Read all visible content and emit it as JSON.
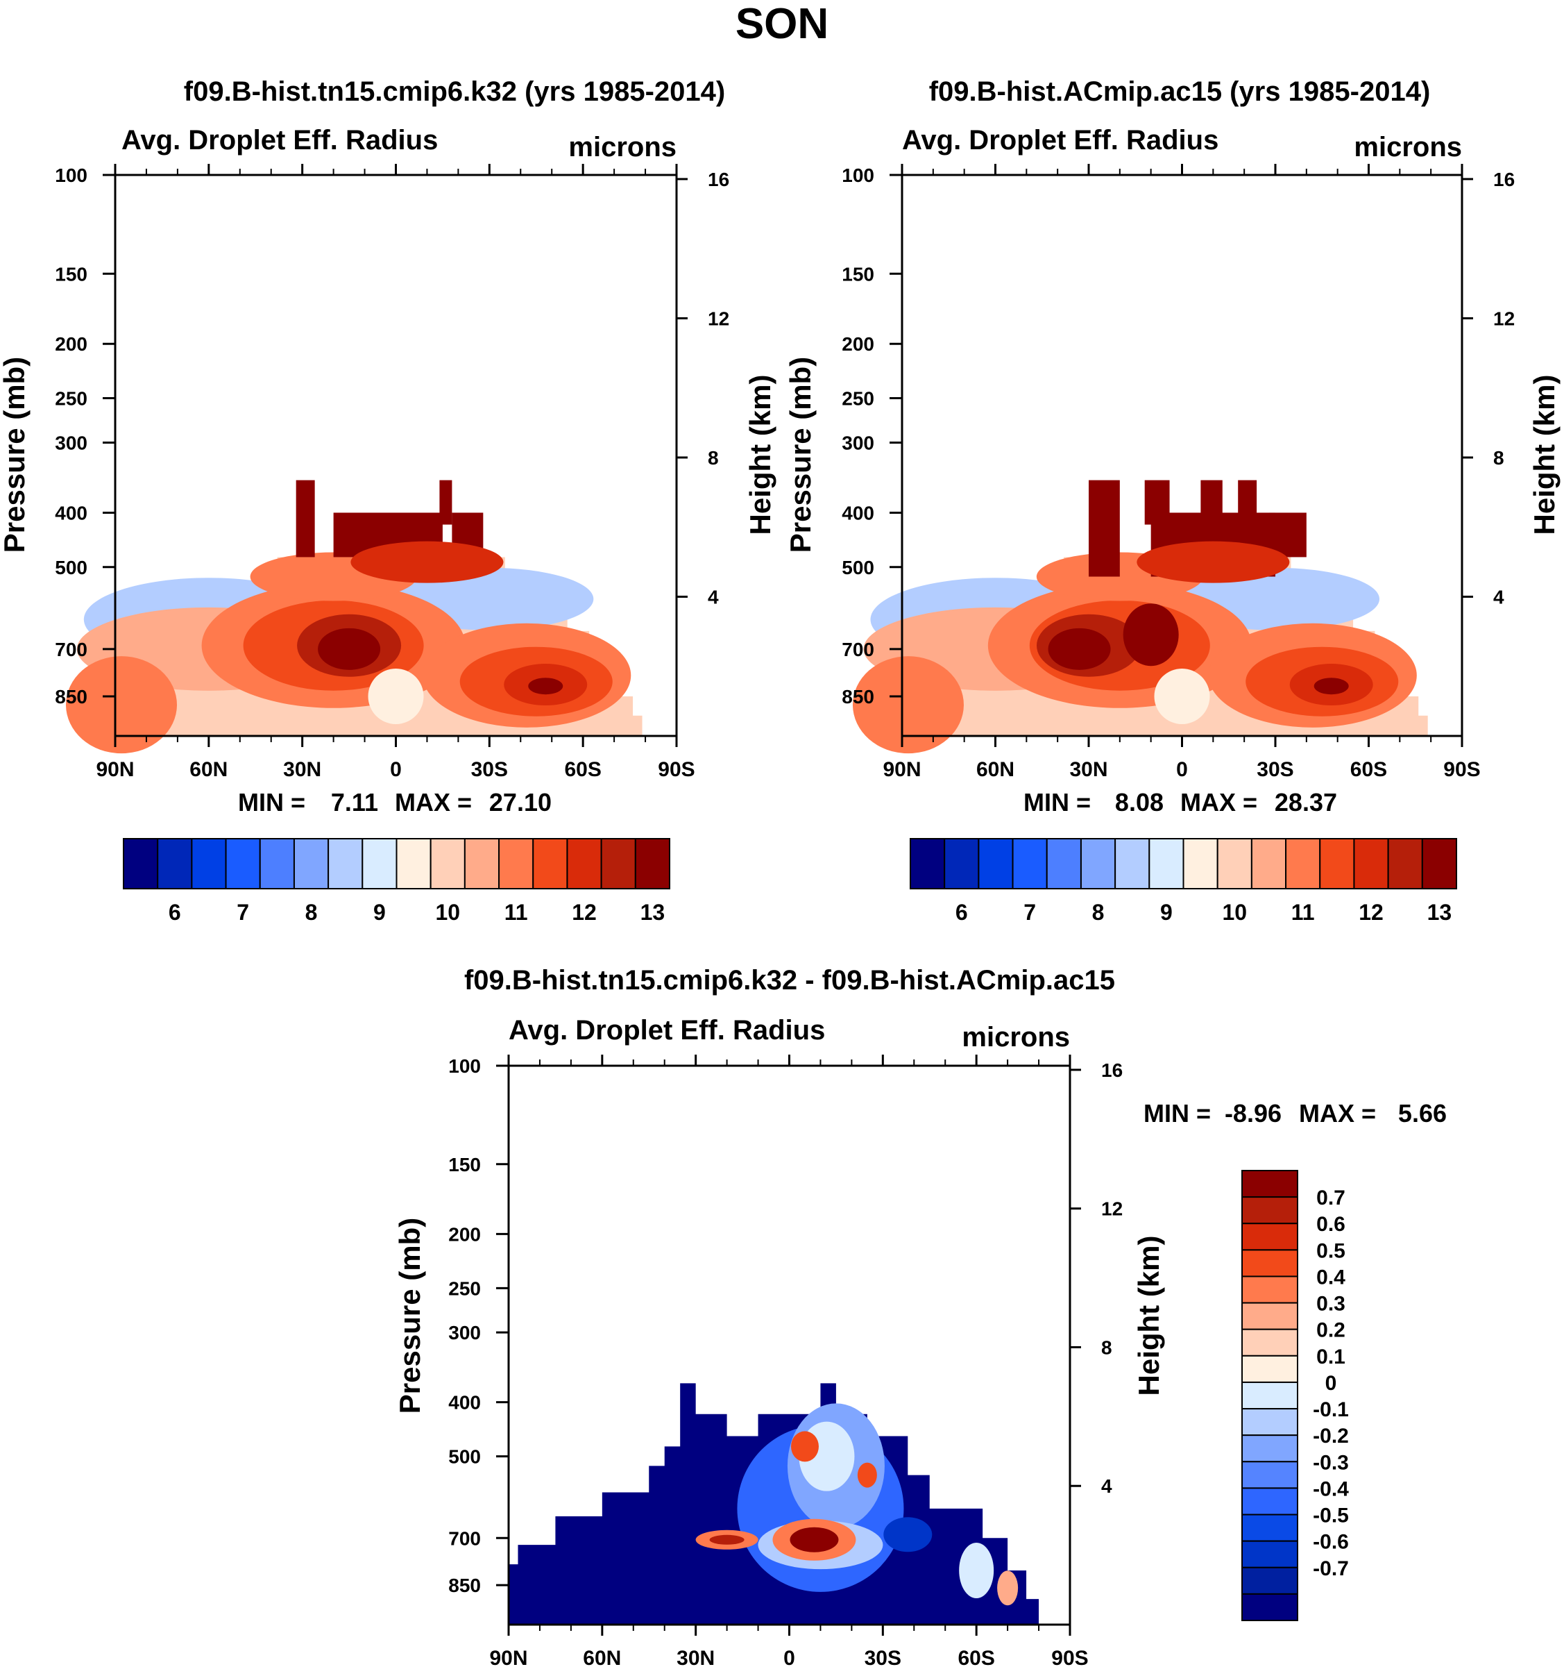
{
  "figure": {
    "season_title": "SON"
  },
  "colors": {
    "abs_scale": [
      "#000080",
      "#0027b8",
      "#0040e5",
      "#1a5cff",
      "#4d7fff",
      "#80a6ff",
      "#b3cdff",
      "#d9ecff",
      "#fff0e0",
      "#ffd0b8",
      "#ffab8a",
      "#ff7a4d",
      "#f24a1a",
      "#d92b0a",
      "#b51f0a",
      "#8b0000"
    ],
    "diff_scale": [
      "#000080",
      "#0020a0",
      "#0035c8",
      "#0a4ae6",
      "#2e66ff",
      "#5584ff",
      "#80a6ff",
      "#b3cdff",
      "#d9ecff",
      "#fff0e0",
      "#ffd0b8",
      "#ffab8a",
      "#ff7a4d",
      "#f24a1a",
      "#d92b0a",
      "#b51f0a",
      "#8b0000"
    ]
  },
  "chart_data": [
    {
      "type": "heatmap",
      "title": "f09.B-hist.tn15.cmip6.k32 (yrs 1985-2014)",
      "subtitle_left": "Avg. Droplet Eff. Radius",
      "subtitle_right": "microns",
      "xlabel": "",
      "ylabel_left": "Pressure (mb)",
      "ylabel_right": "Height (km)",
      "x_ticks": [
        "90N",
        "60N",
        "30N",
        "0",
        "30S",
        "60S",
        "90S"
      ],
      "x_values": [
        90,
        60,
        30,
        0,
        -30,
        -60,
        -90
      ],
      "y_ticks_pressure": [
        100,
        150,
        200,
        250,
        300,
        400,
        500,
        700,
        850
      ],
      "y_ticks_height": [
        16,
        12,
        8,
        4
      ],
      "min_label": "MIN =",
      "min_value": "7.11",
      "max_label": "MAX =",
      "max_value": "27.10",
      "colorbar_labels": [
        "6",
        "7",
        "8",
        "9",
        "10",
        "11",
        "12",
        "13"
      ],
      "colorbar_levels": [
        5.5,
        6,
        6.5,
        7,
        7.5,
        8,
        8.5,
        9,
        9.5,
        10,
        10.5,
        11,
        11.5,
        12,
        12.5,
        13
      ]
    },
    {
      "type": "heatmap",
      "title": "f09.B-hist.ACmip.ac15 (yrs 1985-2014)",
      "subtitle_left": "Avg. Droplet Eff. Radius",
      "subtitle_right": "microns",
      "xlabel": "",
      "ylabel_left": "Pressure (mb)",
      "ylabel_right": "Height (km)",
      "x_ticks": [
        "90N",
        "60N",
        "30N",
        "0",
        "30S",
        "60S",
        "90S"
      ],
      "x_values": [
        90,
        60,
        30,
        0,
        -30,
        -60,
        -90
      ],
      "y_ticks_pressure": [
        100,
        150,
        200,
        250,
        300,
        400,
        500,
        700,
        850
      ],
      "y_ticks_height": [
        16,
        12,
        8,
        4
      ],
      "min_label": "MIN =",
      "min_value": "8.08",
      "max_label": "MAX =",
      "max_value": "28.37",
      "colorbar_labels": [
        "6",
        "7",
        "8",
        "9",
        "10",
        "11",
        "12",
        "13"
      ],
      "colorbar_levels": [
        5.5,
        6,
        6.5,
        7,
        7.5,
        8,
        8.5,
        9,
        9.5,
        10,
        10.5,
        11,
        11.5,
        12,
        12.5,
        13
      ]
    },
    {
      "type": "heatmap",
      "title": "f09.B-hist.tn15.cmip6.k32 - f09.B-hist.ACmip.ac15",
      "subtitle_left": "Avg. Droplet Eff. Radius",
      "subtitle_right": "microns",
      "xlabel": "",
      "ylabel_left": "Pressure (mb)",
      "ylabel_right": "Height (km)",
      "x_ticks": [
        "90N",
        "60N",
        "30N",
        "0",
        "30S",
        "60S",
        "90S"
      ],
      "x_values": [
        90,
        60,
        30,
        0,
        -30,
        -60,
        -90
      ],
      "y_ticks_pressure": [
        100,
        150,
        200,
        250,
        300,
        400,
        500,
        700,
        850
      ],
      "y_ticks_height": [
        16,
        12,
        8,
        4
      ],
      "min_label": "MIN =",
      "min_value": "-8.96",
      "max_label": "MAX =",
      "max_value": "5.66",
      "colorbar_labels": [
        "0.7",
        "0.6",
        "0.5",
        "0.4",
        "0.3",
        "0.2",
        "0.1",
        "0",
        "-0.1",
        "-0.2",
        "-0.3",
        "-0.4",
        "-0.5",
        "-0.6",
        "-0.7"
      ],
      "colorbar_levels": [
        -0.7,
        -0.6,
        -0.5,
        -0.4,
        -0.3,
        -0.2,
        -0.1,
        0,
        0.1,
        0.2,
        0.3,
        0.4,
        0.5,
        0.6,
        0.7
      ]
    }
  ]
}
